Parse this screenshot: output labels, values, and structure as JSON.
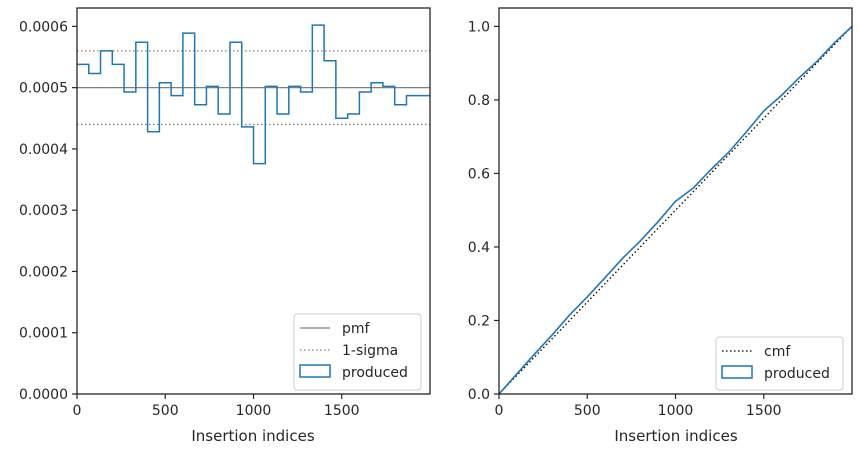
{
  "chart_data": [
    {
      "type": "step",
      "xlabel": "Insertion indices",
      "ylabel": "",
      "xlim": [
        0,
        2000
      ],
      "ylim": [
        0,
        0.00063
      ],
      "xticks": [
        "0",
        "500",
        "1000",
        "1500"
      ],
      "yticks": [
        "0.0000",
        "0.0001",
        "0.0002",
        "0.0003",
        "0.0004",
        "0.0005",
        "0.0006"
      ],
      "reference_lines": [
        {
          "name": "pmf",
          "value": 0.0005,
          "style": "solid",
          "color": "#808080"
        },
        {
          "name": "1-sigma",
          "value": 0.00056,
          "style": "dotted",
          "color": "#808080"
        },
        {
          "name": "1-sigma",
          "value": 0.00044,
          "style": "dotted",
          "color": "#808080"
        }
      ],
      "series": [
        {
          "name": "produced",
          "color": "#1f77b4",
          "bin_width": 66.667,
          "values": [
            0.000538,
            0.000523,
            0.00056,
            0.000538,
            0.000493,
            0.000574,
            0.000428,
            0.000508,
            0.000487,
            0.000589,
            0.000472,
            0.000502,
            0.000457,
            0.000574,
            0.000436,
            0.000376,
            0.000502,
            0.000457,
            0.000502,
            0.000493,
            0.000602,
            0.000544,
            0.00045,
            0.000457,
            0.000493,
            0.000508,
            0.000502,
            0.000472,
            0.000487,
            0.000487
          ]
        }
      ],
      "legend": {
        "position": "lower-right",
        "entries": [
          "pmf",
          "1-sigma",
          "produced"
        ]
      }
    },
    {
      "type": "line",
      "xlabel": "Insertion indices",
      "ylabel": "",
      "xlim": [
        0,
        2000
      ],
      "ylim": [
        0,
        1.05
      ],
      "xticks": [
        "0",
        "500",
        "1000",
        "1500"
      ],
      "yticks": [
        "0.0",
        "0.2",
        "0.4",
        "0.6",
        "0.8",
        "1.0"
      ],
      "series": [
        {
          "name": "cmf",
          "style": "dotted",
          "color": "#000000",
          "x": [
            0,
            2000
          ],
          "y": [
            0,
            1.0
          ]
        },
        {
          "name": "produced",
          "style": "solid",
          "color": "#1f77b4",
          "x": [
            0,
            100,
            200,
            300,
            400,
            500,
            600,
            700,
            800,
            900,
            1000,
            1100,
            1200,
            1300,
            1400,
            1500,
            1600,
            1700,
            1800,
            1900,
            2000
          ],
          "y": [
            0,
            0.054,
            0.108,
            0.16,
            0.215,
            0.264,
            0.316,
            0.369,
            0.416,
            0.468,
            0.524,
            0.56,
            0.61,
            0.657,
            0.712,
            0.77,
            0.812,
            0.86,
            0.904,
            0.955,
            1.0
          ]
        }
      ],
      "legend": {
        "position": "lower-right",
        "entries": [
          "cmf",
          "produced"
        ]
      }
    }
  ]
}
